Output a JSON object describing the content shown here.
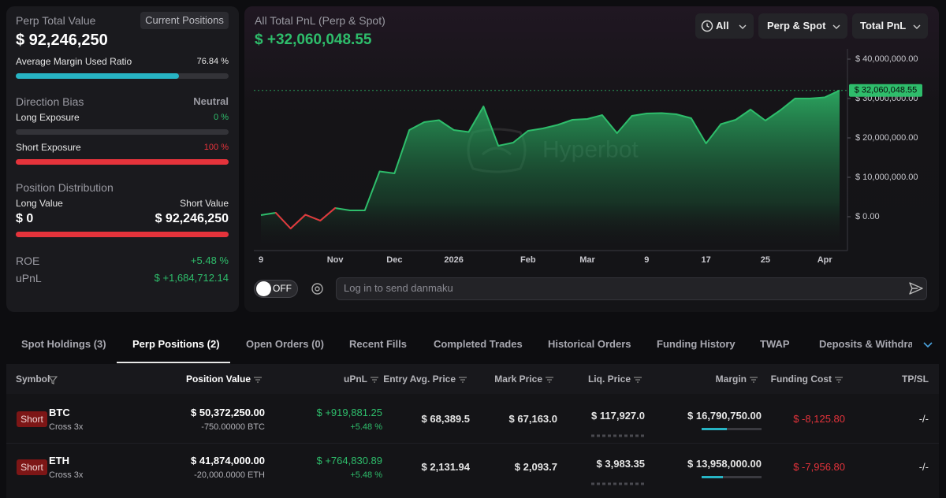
{
  "summary": {
    "title": "Perp Total Value",
    "button": "Current Positions",
    "total": "$ 92,246,250",
    "margin_ratio": {
      "label": "Average Margin Used Ratio",
      "value": 76.84,
      "value_label": "76.84 %"
    },
    "direction_bias": {
      "label": "Direction Bias",
      "value": "Neutral"
    },
    "long_exposure": {
      "label": "Long Exposure",
      "value": 0,
      "value_label": "0 %"
    },
    "short_exposure": {
      "label": "Short Exposure",
      "value": 100,
      "value_label": "100 %"
    },
    "distribution": {
      "label": "Position Distribution",
      "long_label": "Long Value",
      "long_value": 0,
      "long_value_label": "$ 0",
      "short_label": "Short Value",
      "short_value": 92246250,
      "short_value_label": "$ 92,246,250"
    },
    "roe": {
      "label": "ROE",
      "value": "+5.48 %"
    },
    "upnl": {
      "label": "uPnL",
      "value": "$ +1,684,712.14"
    }
  },
  "chart_header": {
    "title": "All Total PnL (Perp & Spot)",
    "value": "$ +32,060,048.55",
    "filters": [
      "All",
      "Perp & Spot",
      "Total PnL"
    ]
  },
  "chart_data": {
    "type": "area",
    "watermark": "Hyperbot",
    "categories": [
      "9",
      null,
      null,
      null,
      null,
      "Nov",
      null,
      null,
      null,
      "Dec",
      null,
      null,
      null,
      "2026",
      null,
      null,
      null,
      null,
      "Feb",
      null,
      null,
      null,
      "Mar",
      null,
      null,
      null,
      "9",
      null,
      null,
      null,
      "17",
      null,
      null,
      null,
      "25",
      null,
      null,
      null,
      "Apr",
      null
    ],
    "series": [
      {
        "name": "Total PnL",
        "color": "#2ebd6b",
        "values": [
          400000,
          1000000,
          -3000000,
          500000,
          -1000000,
          2200000,
          1600000,
          1600000,
          11500000,
          11000000,
          22000000,
          24000000,
          24500000,
          22000000,
          21500000,
          28000000,
          18000000,
          18800000,
          21800000,
          22400000,
          23300000,
          24600000,
          24800000,
          25800000,
          21200000,
          25600000,
          26200000,
          26300000,
          26000000,
          25000000,
          18600000,
          23500000,
          24600000,
          27200000,
          24400000,
          27000000,
          30000000,
          30000000,
          30300000,
          32060048.55
        ]
      }
    ],
    "negative_color": "#e5333b",
    "last_value_label": "$ 32,060,048.55",
    "ylim": [
      -8600000,
      42600000
    ],
    "yticks": [
      {
        "value": 0,
        "label": "$ 0.00"
      },
      {
        "value": 10000000,
        "label": "$ 10,000,000.00"
      },
      {
        "value": 20000000,
        "label": "$ 20,000,000.00"
      },
      {
        "value": 30000000,
        "label": "$ 30,000,000.00"
      },
      {
        "value": 40000000,
        "label": "$ 40,000,000.00"
      }
    ],
    "grid": false
  },
  "danmaku": {
    "toggle": "OFF",
    "placeholder": "Log in to send danmaku"
  },
  "tabs": {
    "items": [
      "Spot Holdings (3)",
      "Perp Positions (2)",
      "Open Orders (0)",
      "Recent Fills",
      "Completed Trades",
      "Historical Orders",
      "Funding History",
      "TWAP",
      "Deposits & Withdrawals"
    ],
    "active": 1
  },
  "table": {
    "columns": [
      "Symbol",
      "Position Value",
      "uPnL",
      "Entry Avg. Price",
      "Mark Price",
      "Liq. Price",
      "Margin",
      "Funding Cost",
      "TP/SL"
    ],
    "rows": [
      {
        "side": "Short",
        "symbol": "BTC",
        "mode": "Cross 3x",
        "position_value": "$ 50,372,250.00",
        "size": "-750.00000 BTC",
        "upnl": "$ +919,881.25",
        "roe": "+5.48 %",
        "entry": "$ 68,389.5",
        "mark": "$ 67,163.0",
        "liq": "$ 117,927.0",
        "margin": "$ 16,790,750.00",
        "funding": "$ -8,125.80",
        "tpsl": "-/-"
      },
      {
        "side": "Short",
        "symbol": "ETH",
        "mode": "Cross 3x",
        "position_value": "$ 41,874,000.00",
        "size": "-20,000.0000 ETH",
        "upnl": "$ +764,830.89",
        "roe": "+5.48 %",
        "entry": "$ 2,131.94",
        "mark": "$ 2,093.7",
        "liq": "$ 3,983.35",
        "margin": "$ 13,958,000.00",
        "funding": "$ -7,956.80",
        "tpsl": "-/-"
      }
    ]
  }
}
